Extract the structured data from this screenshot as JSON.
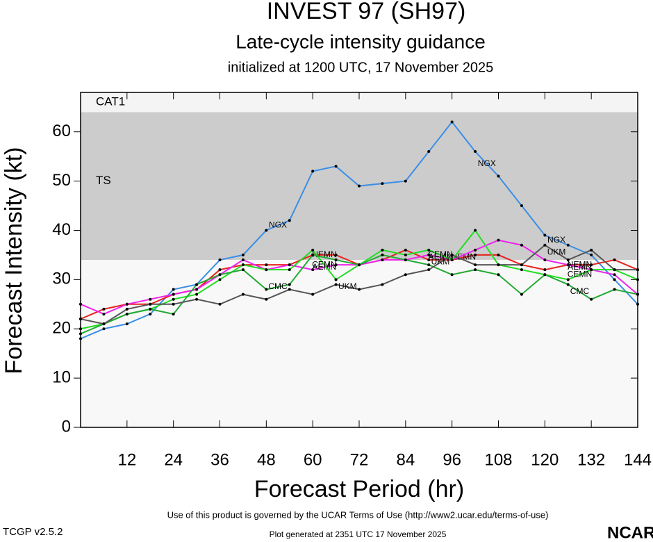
{
  "chart_data": {
    "type": "line",
    "title": "INVEST 97 (SH97)",
    "subtitle": "Late-cycle intensity guidance",
    "initialized": "initialized at 1200 UTC, 17 November 2025",
    "x_label": "Forecast Period (hr)",
    "y_label": "Forecast Intensity (kt)",
    "x": [
      0,
      6,
      12,
      18,
      24,
      30,
      36,
      42,
      48,
      54,
      60,
      66,
      72,
      78,
      84,
      90,
      96,
      102,
      108,
      114,
      120,
      126,
      132,
      138,
      144
    ],
    "xlim": [
      0,
      144
    ],
    "ylim": [
      0,
      68
    ],
    "xticks": [
      12,
      24,
      36,
      48,
      60,
      72,
      84,
      96,
      108,
      120,
      132,
      144
    ],
    "yticks": [
      0,
      10,
      20,
      30,
      40,
      50,
      60
    ],
    "bands": [
      {
        "label": "TS",
        "from": 34,
        "to": 64,
        "color": "#cccccc"
      },
      {
        "label": "CAT1",
        "from": 64,
        "to": 83,
        "color": "#f4f4f4"
      }
    ],
    "series": [
      {
        "name": "NGX",
        "color": "#3a8ee6",
        "values": [
          18,
          20,
          21,
          23,
          28,
          29,
          34,
          35,
          40,
          42,
          52,
          53,
          49,
          49.5,
          50,
          56,
          62,
          56,
          51,
          45,
          39,
          37,
          35,
          30,
          25
        ]
      },
      {
        "name": "NEMN",
        "color": "#e8221e",
        "values": [
          22,
          24,
          25,
          25,
          27,
          28,
          32,
          33,
          33,
          33,
          35,
          35,
          33,
          34,
          36,
          34,
          34,
          35,
          35,
          33,
          32,
          33,
          33,
          34,
          32
        ]
      },
      {
        "name": "AEMN",
        "color": "#ee22ee",
        "values": [
          25,
          23,
          25,
          26,
          27,
          28,
          31,
          34,
          32,
          33,
          32,
          33,
          33,
          34,
          34,
          35,
          34,
          36,
          38,
          37,
          34,
          33,
          32,
          31,
          27
        ]
      },
      {
        "name": "CEMN",
        "color": "#22dd22",
        "values": [
          20,
          21,
          23,
          24,
          26,
          27,
          30,
          33,
          32,
          32,
          36,
          30,
          33,
          36,
          35,
          36,
          34,
          40,
          33,
          32,
          31,
          30,
          32,
          32,
          30
        ]
      },
      {
        "name": "CMC",
        "color": "#22aa33",
        "values": [
          19,
          21,
          23,
          24,
          23,
          29,
          31,
          32,
          28,
          29,
          35,
          34,
          33,
          35,
          34,
          33,
          31,
          32,
          31,
          27,
          31,
          29,
          26,
          28,
          27
        ]
      },
      {
        "name": "UKM",
        "color": "#555555",
        "values": [
          22,
          21,
          24,
          25,
          25,
          26,
          25,
          27,
          26,
          28,
          27,
          29,
          28,
          29,
          31,
          32,
          35,
          33,
          33,
          33,
          37,
          34,
          36,
          32,
          32
        ]
      }
    ],
    "footer": "Use of this product is governed by the UCAR Terms of Use (http://www2.ucar.edu/terms-of-use)",
    "version": "TCGP v2.5.2",
    "generated": "Plot generated at 2351 UTC   17 November 2025",
    "logo": "NCAR"
  }
}
